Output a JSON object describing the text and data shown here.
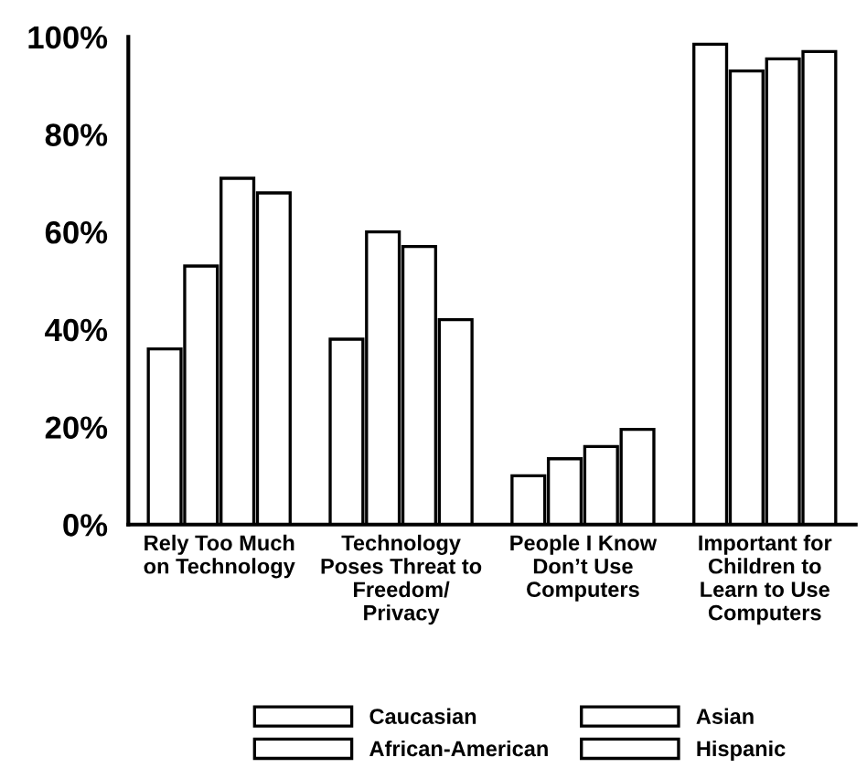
{
  "chart_data": {
    "type": "bar",
    "categories": [
      "Rely Too Much\non Technology",
      "Technology\nPoses Threat to\nFreedom/\nPrivacy",
      "People I Know\nDon’t Use\nComputers",
      "Important for\nChildren to\nLearn to Use\nComputers"
    ],
    "series": [
      {
        "name": "Caucasian",
        "color": "#ffffff",
        "values": [
          36,
          38,
          10,
          98.5
        ]
      },
      {
        "name": "African-American",
        "color": "#ffffff",
        "values": [
          53,
          60,
          13.5,
          93
        ]
      },
      {
        "name": "Asian",
        "color": "#ffffff",
        "values": [
          71,
          57,
          16,
          95.5
        ]
      },
      {
        "name": "Hispanic",
        "color": "#ffffff",
        "values": [
          68,
          42,
          19.5,
          97
        ]
      }
    ],
    "ylim": [
      0,
      100
    ],
    "yticks": [
      {
        "value": 0,
        "label": "0%"
      },
      {
        "value": 20,
        "label": "20%"
      },
      {
        "value": 40,
        "label": "40%"
      },
      {
        "value": 60,
        "label": "60%"
      },
      {
        "value": 80,
        "label": "80%"
      },
      {
        "value": 100,
        "label": "100%"
      }
    ],
    "grid": false,
    "legend": "bottom"
  }
}
